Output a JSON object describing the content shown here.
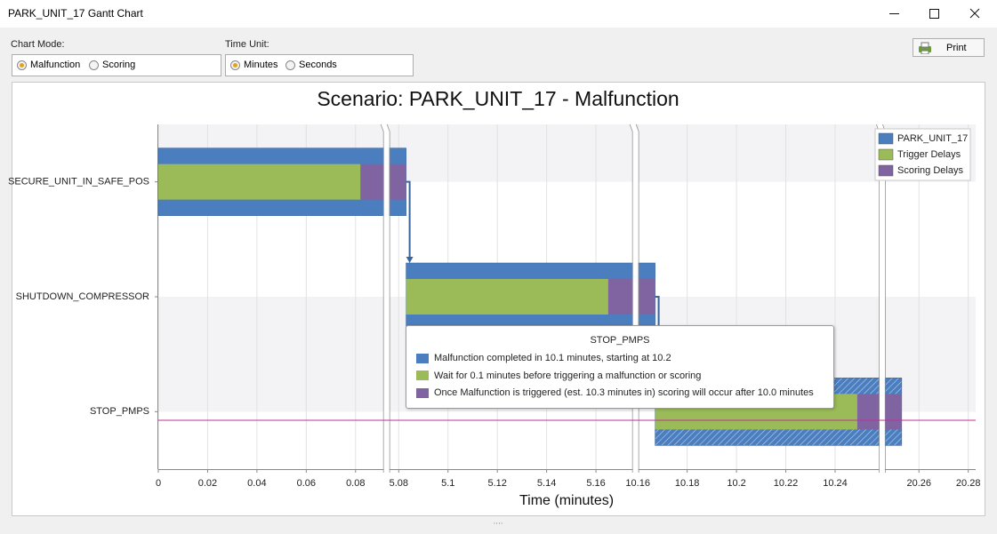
{
  "window": {
    "title": "PARK_UNIT_17 Gantt Chart"
  },
  "controls": {
    "chart_mode": {
      "label": "Chart Mode:",
      "options": [
        "Malfunction",
        "Scoring"
      ],
      "selected": 0
    },
    "time_unit": {
      "label": "Time Unit:",
      "options": [
        "Minutes",
        "Seconds"
      ],
      "selected": 0
    },
    "print_button": "Print"
  },
  "chart_data": {
    "type": "gantt",
    "title": "Scenario: PARK_UNIT_17 - Malfunction",
    "x_label": "Time (minutes)",
    "categories": [
      "SECURE_UNIT_IN_SAFE_POS",
      "SHUTDOWN_COMPRESSOR",
      "STOP_PMPS"
    ],
    "series": [
      {
        "name": "PARK_UNIT_17",
        "color": "#4a7ebf",
        "start": [
          0,
          5.083,
          10.167
        ],
        "end": [
          5.083,
          10.167,
          20.253
        ]
      },
      {
        "name": "Trigger Delays",
        "color": "#9bbb59",
        "start": [
          0,
          5.083,
          10.167
        ],
        "end": [
          0.082,
          5.165,
          10.249
        ]
      },
      {
        "name": "Scoring Delays",
        "color": "#8064a2",
        "start": [
          0.082,
          5.165,
          10.249
        ],
        "end": [
          5.083,
          10.167,
          20.253
        ]
      }
    ],
    "xlim": [
      0,
      20.283
    ],
    "x_breaks": [
      [
        0.0915,
        5.074
      ],
      [
        5.175,
        10.158
      ],
      [
        10.258,
        20.244
      ]
    ],
    "xticks": [
      0,
      0.02,
      0.04,
      0.06,
      0.08,
      5.08,
      5.1,
      5.12,
      5.14,
      5.16,
      10.16,
      10.18,
      10.2,
      10.22,
      10.24,
      20.26,
      20.28
    ],
    "grid": true,
    "legend": "top-right",
    "selected_category": 2,
    "tooltip": {
      "title": "STOP_PMPS",
      "lines": [
        "Malfunction completed in 10.1 minutes, starting at 10.2",
        "Wait for 0.1 minutes before triggering a malfunction or scoring",
        "Once Malfunction is triggered (est. 10.3 minutes in) scoring will occur after 10.0 minutes"
      ]
    }
  }
}
